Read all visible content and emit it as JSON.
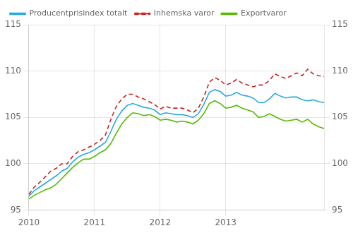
{
  "chart_data": {
    "type": "line",
    "categories": [
      "2010",
      null,
      null,
      null,
      null,
      null,
      null,
      null,
      null,
      null,
      null,
      null,
      "2011",
      null,
      null,
      null,
      null,
      null,
      null,
      null,
      null,
      null,
      null,
      null,
      "2012",
      null,
      null,
      null,
      null,
      null,
      null,
      null,
      null,
      null,
      null,
      null,
      "2013",
      null,
      null,
      null,
      null,
      null,
      null,
      null,
      null,
      null,
      null,
      null,
      null,
      null,
      null,
      null,
      null,
      null,
      null
    ],
    "series": [
      {
        "name": "Producentprisindex totalt",
        "color": "#29aadf",
        "line_style": "solid",
        "values": [
          96.5,
          97.1,
          97.5,
          97.9,
          98.3,
          98.7,
          99.2,
          99.5,
          100.2,
          100.7,
          101.0,
          101.2,
          101.5,
          101.9,
          102.3,
          103.5,
          104.8,
          105.7,
          106.3,
          106.5,
          106.3,
          106.1,
          106.0,
          105.8,
          105.3,
          105.5,
          105.4,
          105.3,
          105.3,
          105.2,
          105.0,
          105.4,
          106.4,
          107.7,
          108.0,
          107.8,
          107.3,
          107.4,
          107.7,
          107.4,
          107.3,
          107.1,
          106.6,
          106.6,
          107.0,
          107.6,
          107.3,
          107.1,
          107.2,
          107.2,
          106.9,
          106.8,
          106.9,
          106.7,
          106.6
        ]
      },
      {
        "name": "Inhemska varor",
        "color": "#cc2222",
        "line_style": "dashed",
        "values": [
          96.7,
          97.5,
          98.0,
          98.6,
          99.2,
          99.5,
          100.0,
          100.0,
          100.8,
          101.3,
          101.5,
          101.8,
          102.1,
          102.5,
          103.1,
          104.8,
          106.2,
          107.0,
          107.5,
          107.5,
          107.2,
          107.0,
          106.7,
          106.4,
          105.9,
          106.2,
          106.0,
          106.0,
          106.0,
          105.8,
          105.5,
          106.0,
          107.2,
          108.8,
          109.3,
          109.0,
          108.5,
          108.7,
          109.1,
          108.7,
          108.5,
          108.3,
          108.5,
          108.5,
          109.0,
          109.7,
          109.4,
          109.2,
          109.5,
          109.8,
          109.5,
          110.2,
          109.7,
          109.5,
          109.4
        ]
      },
      {
        "name": "Exportvaror",
        "color": "#55bb00",
        "line_style": "solid",
        "values": [
          96.2,
          96.6,
          96.9,
          97.2,
          97.4,
          97.8,
          98.4,
          99.0,
          99.6,
          100.1,
          100.5,
          100.5,
          100.8,
          101.2,
          101.5,
          102.2,
          103.3,
          104.3,
          105.0,
          105.5,
          105.4,
          105.2,
          105.3,
          105.1,
          104.7,
          104.8,
          104.7,
          104.5,
          104.6,
          104.5,
          104.3,
          104.7,
          105.4,
          106.5,
          106.8,
          106.5,
          106.0,
          106.1,
          106.3,
          106.0,
          105.8,
          105.6,
          105.0,
          105.1,
          105.4,
          105.1,
          104.8,
          104.6,
          104.7,
          104.8,
          104.5,
          104.8,
          104.3,
          104.0,
          103.8
        ]
      }
    ],
    "ylim": [
      95,
      115
    ],
    "yticks": [
      95,
      100,
      105,
      110,
      115
    ],
    "y2lim": [
      95,
      115
    ],
    "y2ticks": [
      95,
      100,
      105,
      110,
      115
    ],
    "grid": true,
    "legend": "upper left"
  }
}
